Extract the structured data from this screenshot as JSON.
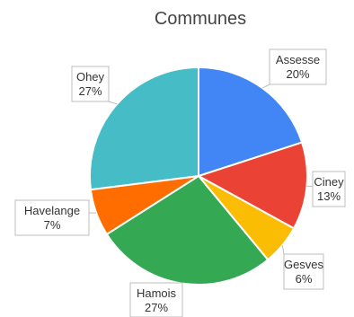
{
  "chart_data": {
    "type": "pie",
    "title": "Communes",
    "slices": [
      {
        "name": "Assesse",
        "value": 20,
        "label": "20%",
        "color": "#4285f4"
      },
      {
        "name": "Ciney",
        "value": 13,
        "label": "13%",
        "color": "#ea4335"
      },
      {
        "name": "Gesves",
        "value": 6,
        "label": "6%",
        "color": "#fbbc04"
      },
      {
        "name": "Hamois",
        "value": 27,
        "label": "27%",
        "color": "#34a853"
      },
      {
        "name": "Havelange",
        "value": 7,
        "label": "7%",
        "color": "#ff6d01"
      },
      {
        "name": "Ohey",
        "value": 27,
        "label": "27%",
        "color": "#46bdc6"
      }
    ],
    "start_angle": "12 o'clock",
    "direction": "clockwise",
    "legend": "none"
  }
}
